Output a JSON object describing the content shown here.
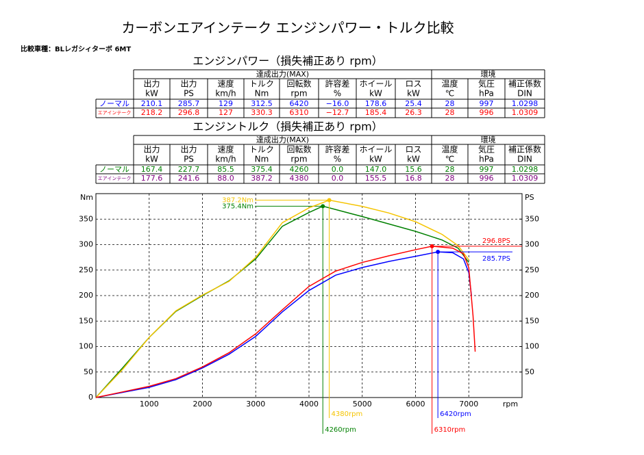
{
  "header": {
    "title": "カーボンエアインテーク  エンジンパワー・トルク比較",
    "subtitle": "比較車種：BLレガシィターボ 6MT"
  },
  "tables": [
    {
      "title": "エンジンパワー（損失補正あり  rpm）",
      "groups": [
        "達成出力(MAX)",
        "環境"
      ],
      "columns": [
        [
          "出力",
          "kW"
        ],
        [
          "出力",
          "PS"
        ],
        [
          "速度",
          "km/h"
        ],
        [
          "トルク",
          "Nm"
        ],
        [
          "回転数",
          "rpm"
        ],
        [
          "許容差",
          "%"
        ],
        [
          "ホイール",
          "kW"
        ],
        [
          "ロス",
          "kW"
        ],
        [
          "温度",
          "℃"
        ],
        [
          "気圧",
          "hPa"
        ],
        [
          "補正係数",
          "DIN"
        ]
      ],
      "rows": [
        {
          "label": "ノーマル",
          "color": "#0000ff",
          "cells": [
            "210.1",
            "285.7",
            "129",
            "312.5",
            "6420",
            "−16.0",
            "178.6",
            "25.4",
            "28",
            "997",
            "1.0298"
          ]
        },
        {
          "label": "エアインテーク",
          "color": "#ff0000",
          "cells": [
            "218.2",
            "296.8",
            "127",
            "330.3",
            "6310",
            "−12.7",
            "185.4",
            "26.3",
            "28",
            "996",
            "1.0309"
          ]
        }
      ]
    },
    {
      "title": "エンジントルク（損失補正あり  rpm）",
      "groups": [
        "達成出力(MAX)",
        "環境"
      ],
      "columns": [
        [
          "出力",
          "kW"
        ],
        [
          "出力",
          "PS"
        ],
        [
          "速度",
          "km/h"
        ],
        [
          "トルク",
          "Nm"
        ],
        [
          "回転数",
          "rpm"
        ],
        [
          "許容差",
          "%"
        ],
        [
          "ホイール",
          "kW"
        ],
        [
          "ロス",
          "kW"
        ],
        [
          "温度",
          "℃"
        ],
        [
          "気圧",
          "hPa"
        ],
        [
          "補正係数",
          "DIN"
        ]
      ],
      "rows": [
        {
          "label": "ノーマル",
          "color": "#008000",
          "cells": [
            "167.4",
            "227.7",
            "85.5",
            "375.4",
            "4260",
            "0.0",
            "147.0",
            "15.6",
            "28",
            "997",
            "1.0298"
          ]
        },
        {
          "label": "エアインテーク",
          "color": "#800080",
          "cells": [
            "177.6",
            "241.6",
            "88.0",
            "387.2",
            "4380",
            "0.0",
            "155.5",
            "16.8",
            "28",
            "996",
            "1.0309"
          ]
        }
      ]
    }
  ],
  "chart_data": {
    "type": "line",
    "y_label": "Nm",
    "y2_label": "PS",
    "x_label": "rpm",
    "xlim": [
      0,
      8000
    ],
    "xticks": [
      1000,
      2000,
      3000,
      4000,
      5000,
      6000,
      7000
    ],
    "ylim": [
      0,
      400
    ],
    "yticks": [
      0,
      50,
      100,
      150,
      200,
      250,
      300,
      350
    ],
    "y2lim": [
      0,
      400
    ],
    "y2ticks": [
      50,
      100,
      150,
      200,
      250,
      300,
      350
    ],
    "grid": true,
    "series": [
      {
        "color": "#008000",
        "x": [
          0,
          500,
          1000,
          1500,
          2000,
          2500,
          3000,
          3500,
          4000,
          4260,
          5000,
          6000,
          6500,
          6800,
          7000
        ],
        "values": [
          0,
          58,
          118,
          169,
          200,
          229,
          272,
          336,
          363,
          375.4,
          355,
          326,
          309,
          293,
          265
        ],
        "peak": {
          "x": 4260,
          "y": 375.4,
          "x_label": "4260rpm",
          "y_label": "375.4Nm"
        }
      },
      {
        "color": "#f5c400",
        "x": [
          0,
          500,
          1000,
          1500,
          2000,
          2500,
          3000,
          3500,
          4000,
          4380,
          5000,
          5500,
          6000,
          6500,
          6800,
          7000
        ],
        "values": [
          0,
          55,
          118,
          170,
          201,
          228,
          275,
          343,
          372,
          387.2,
          375,
          362,
          345,
          320,
          298,
          270
        ],
        "peak": {
          "x": 4380,
          "y": 387.2,
          "x_label": "4380rpm",
          "y_label": "387.2Nm"
        }
      },
      {
        "color": "#0000ff",
        "axis": "y2",
        "x": [
          0,
          500,
          1000,
          1500,
          2000,
          2500,
          3000,
          3500,
          4000,
          4500,
          5000,
          5500,
          6000,
          6420,
          6700,
          6900,
          7000,
          7050
        ],
        "values": [
          0,
          10,
          20,
          35,
          58,
          85,
          120,
          168,
          210,
          240,
          255,
          267,
          277,
          285.7,
          284,
          272,
          245,
          200
        ],
        "peak": {
          "x": 6420,
          "y": 285.7,
          "x_label": "6420rpm",
          "y_label": "285.7PS"
        }
      },
      {
        "color": "#ff0000",
        "axis": "y2",
        "x": [
          0,
          500,
          1000,
          1500,
          2000,
          2500,
          3000,
          3500,
          4000,
          4500,
          5000,
          5500,
          6000,
          6310,
          6700,
          6900,
          7000,
          7080,
          7120
        ],
        "values": [
          0,
          11,
          22,
          37,
          60,
          88,
          125,
          172,
          218,
          248,
          265,
          278,
          290,
          296.8,
          293,
          282,
          255,
          160,
          90
        ],
        "peak": {
          "x": 6310,
          "y": 296.8,
          "x_label": "6310rpm",
          "y_label": "296.8PS"
        }
      }
    ]
  }
}
